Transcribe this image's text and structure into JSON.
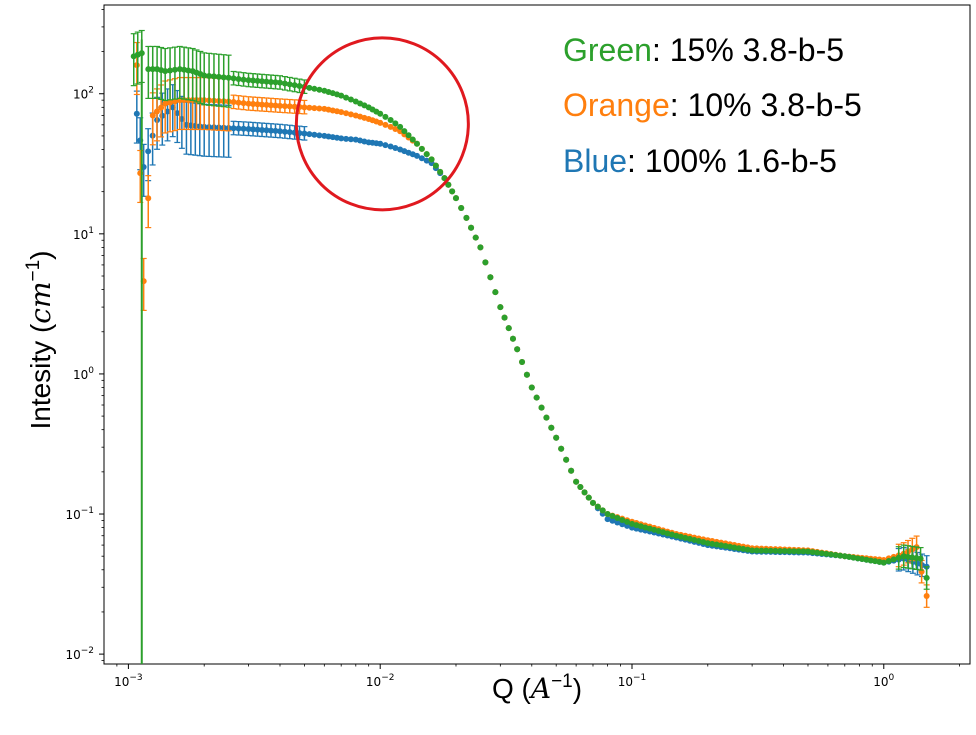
{
  "chart_data": {
    "type": "scatter",
    "xscale": "log",
    "yscale": "log",
    "xlim": [
      0.0008,
      2.2
    ],
    "ylim": [
      0.0085,
      430
    ],
    "xlabel_prefix": "Q (",
    "xlabel_math": "A",
    "xlabel_exp": "−1",
    "xlabel_suffix": ")",
    "ylabel_prefix": "Intesity (",
    "ylabel_math": "cm",
    "ylabel_exp": "−1",
    "ylabel_suffix": ")",
    "x_ticks": [
      {
        "value": 0.001,
        "base": "10",
        "exp": "−3"
      },
      {
        "value": 0.01,
        "base": "10",
        "exp": "−2"
      },
      {
        "value": 0.1,
        "base": "10",
        "exp": "−1"
      },
      {
        "value": 1,
        "base": "10",
        "exp": "0"
      }
    ],
    "y_ticks": [
      {
        "value": 0.01,
        "base": "10",
        "exp": "−2"
      },
      {
        "value": 0.1,
        "base": "10",
        "exp": "−1"
      },
      {
        "value": 1,
        "base": "10",
        "exp": "0"
      },
      {
        "value": 10,
        "base": "10",
        "exp": "1"
      },
      {
        "value": 100,
        "base": "10",
        "exp": "2"
      }
    ],
    "legend": [
      {
        "color_word": "Green",
        "rest": ": 15% 3.8-b-5",
        "color": "#2ca02c"
      },
      {
        "color_word": "Orange",
        "rest": ": 10% 3.8-b-5",
        "color": "#ff7f0e"
      },
      {
        "color_word": "Blue",
        "rest": ": 100% 1.6-b-5",
        "color": "#1f77b4"
      }
    ],
    "annotation": {
      "type": "circle",
      "center_x": 0.0102,
      "center_y": 61,
      "color": "#e0191f"
    },
    "series": [
      {
        "color": "#2ca02c",
        "points": [
          [
            0.00105,
            185
          ],
          [
            0.00113,
            195
          ],
          [
            0.0012,
            150
          ],
          [
            0.0013,
            150
          ],
          [
            0.0014,
            145
          ],
          [
            0.0016,
            150
          ],
          [
            0.0018,
            145
          ],
          [
            0.002,
            135
          ],
          [
            0.0025,
            130
          ],
          [
            0.003,
            125
          ],
          [
            0.004,
            120
          ],
          [
            0.005,
            112
          ],
          [
            0.006,
            105
          ],
          [
            0.007,
            97
          ],
          [
            0.008,
            88
          ],
          [
            0.009,
            80
          ],
          [
            0.01,
            72
          ],
          [
            0.011,
            65
          ],
          [
            0.012,
            58
          ],
          [
            0.014,
            44
          ],
          [
            0.016,
            34
          ],
          [
            0.018,
            25
          ],
          [
            0.02,
            18
          ],
          [
            0.022,
            13
          ],
          [
            0.025,
            8
          ],
          [
            0.03,
            3
          ],
          [
            0.035,
            1.5
          ],
          [
            0.04,
            0.8
          ],
          [
            0.05,
            0.35
          ],
          [
            0.06,
            0.17
          ],
          [
            0.07,
            0.12
          ],
          [
            0.08,
            0.1
          ],
          [
            0.1,
            0.085
          ],
          [
            0.15,
            0.07
          ],
          [
            0.2,
            0.062
          ],
          [
            0.3,
            0.055
          ],
          [
            0.5,
            0.054
          ],
          [
            0.7,
            0.05
          ],
          [
            1.0,
            0.045
          ],
          [
            1.2,
            0.05
          ],
          [
            1.4,
            0.048
          ],
          [
            1.48,
            0.035
          ]
        ]
      },
      {
        "color": "#ff7f0e",
        "points": [
          [
            0.00108,
            160
          ],
          [
            0.00115,
            4.6
          ],
          [
            0.00125,
            70
          ],
          [
            0.0014,
            85
          ],
          [
            0.0016,
            90
          ],
          [
            0.0018,
            90
          ],
          [
            0.002,
            90
          ],
          [
            0.0025,
            88
          ],
          [
            0.003,
            85
          ],
          [
            0.004,
            82
          ],
          [
            0.005,
            80
          ],
          [
            0.006,
            78
          ],
          [
            0.007,
            74
          ],
          [
            0.008,
            70
          ],
          [
            0.009,
            66
          ],
          [
            0.01,
            62
          ],
          [
            0.011,
            58
          ],
          [
            0.012,
            54
          ],
          [
            0.014,
            44
          ],
          [
            0.016,
            34
          ],
          [
            0.018,
            25
          ],
          [
            0.02,
            18
          ],
          [
            0.022,
            13
          ],
          [
            0.025,
            8
          ],
          [
            0.03,
            3
          ],
          [
            0.035,
            1.5
          ],
          [
            0.04,
            0.8
          ],
          [
            0.05,
            0.35
          ],
          [
            0.06,
            0.17
          ],
          [
            0.07,
            0.12
          ],
          [
            0.08,
            0.1
          ],
          [
            0.1,
            0.088
          ],
          [
            0.15,
            0.072
          ],
          [
            0.2,
            0.065
          ],
          [
            0.3,
            0.057
          ],
          [
            0.5,
            0.055
          ],
          [
            0.7,
            0.05
          ],
          [
            1.0,
            0.047
          ],
          [
            1.2,
            0.052
          ],
          [
            1.35,
            0.058
          ],
          [
            1.48,
            0.026
          ]
        ]
      },
      {
        "color": "#1f77b4",
        "points": [
          [
            0.00108,
            72
          ],
          [
            0.00115,
            30
          ],
          [
            0.0013,
            65
          ],
          [
            0.0015,
            80
          ],
          [
            0.0017,
            60
          ],
          [
            0.002,
            58
          ],
          [
            0.0025,
            57
          ],
          [
            0.003,
            56
          ],
          [
            0.004,
            54
          ],
          [
            0.005,
            52
          ],
          [
            0.006,
            50
          ],
          [
            0.007,
            48
          ],
          [
            0.008,
            47
          ],
          [
            0.009,
            45
          ],
          [
            0.01,
            44
          ],
          [
            0.011,
            42
          ],
          [
            0.012,
            40
          ],
          [
            0.014,
            36
          ],
          [
            0.016,
            32
          ],
          [
            0.018,
            25
          ],
          [
            0.02,
            18
          ],
          [
            0.022,
            13
          ],
          [
            0.025,
            8
          ],
          [
            0.03,
            3
          ],
          [
            0.035,
            1.5
          ],
          [
            0.04,
            0.8
          ],
          [
            0.05,
            0.35
          ],
          [
            0.06,
            0.17
          ],
          [
            0.07,
            0.12
          ],
          [
            0.08,
            0.092
          ],
          [
            0.1,
            0.08
          ],
          [
            0.15,
            0.068
          ],
          [
            0.2,
            0.06
          ],
          [
            0.3,
            0.054
          ],
          [
            0.5,
            0.053
          ],
          [
            0.7,
            0.05
          ],
          [
            1.0,
            0.045
          ],
          [
            1.2,
            0.048
          ],
          [
            1.48,
            0.042
          ]
        ]
      }
    ]
  }
}
